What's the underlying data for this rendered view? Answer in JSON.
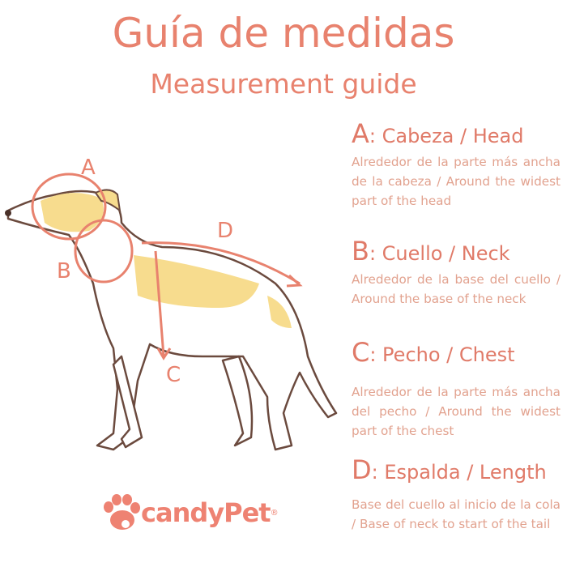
{
  "title": "Guía de medidas",
  "subtitle": "Measurement guide",
  "diagram_labels": {
    "a": "A",
    "b": "B",
    "c": "C",
    "d": "D"
  },
  "sections": [
    {
      "letter": "A",
      "heading": ": Cabeza / Head",
      "text": "Alrededor de la parte más ancha de la cabeza / Around the widest part of the head"
    },
    {
      "letter": "B",
      "heading": ": Cuello / Neck",
      "text": "Alrededor de la base del cuello / Around the base of the neck"
    },
    {
      "letter": "C",
      "heading": ": Pecho / Chest",
      "text": "Alrededor de la parte más ancha del pecho / Around the widest part of the chest"
    },
    {
      "letter": "D",
      "heading": ": Espalda / Length",
      "text": "Base del cuello al inicio de la cola / Base of neck to start of the tail"
    }
  ],
  "logo": {
    "text": "candyPet",
    "mark": "®"
  },
  "colors": {
    "accent": "#e8826e",
    "body_text": "#e2a28f",
    "patch": "#f7dc8e",
    "outline": "#6b4a3e"
  }
}
